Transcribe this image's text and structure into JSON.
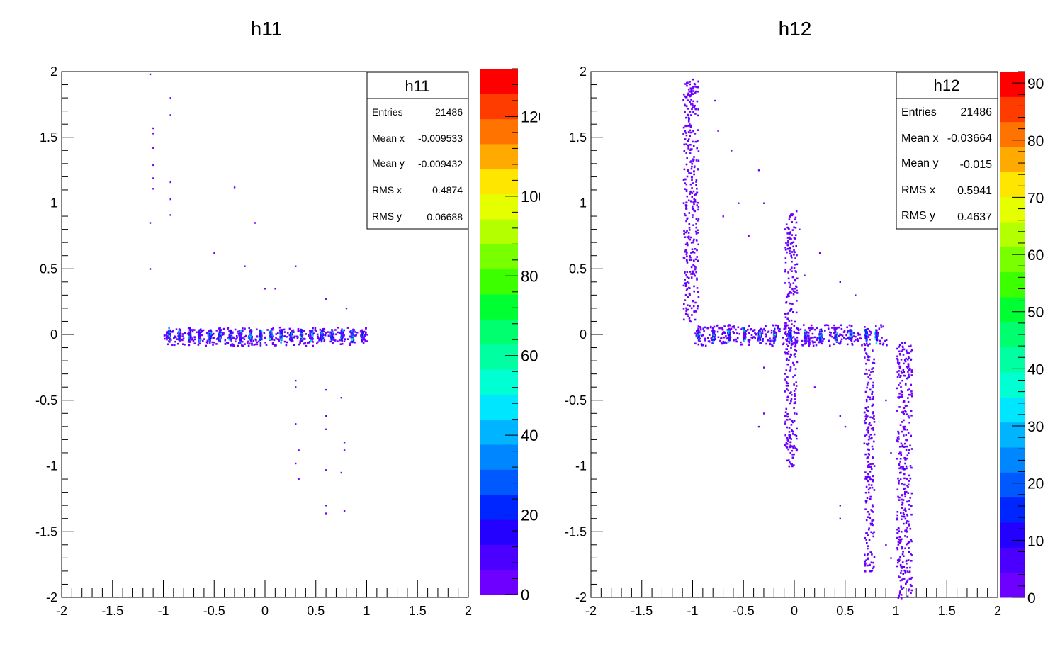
{
  "chart_data": [
    {
      "type": "heatmap",
      "title": "h11",
      "xlim": [
        -2,
        2
      ],
      "ylim": [
        -2,
        2
      ],
      "xticks": [
        "-2",
        "-1.5",
        "-1",
        "-0.5",
        "0",
        "0.5",
        "1",
        "1.5",
        "2"
      ],
      "yticks": [
        "2",
        "1.5",
        "1",
        "0.5",
        "0",
        "-0.5",
        "-1",
        "-1.5",
        "-2"
      ],
      "zlim": [
        0,
        132
      ],
      "zticks": [
        "0",
        "20",
        "40",
        "60",
        "80",
        "100",
        "120"
      ],
      "stats": {
        "name": "h11",
        "rows": [
          {
            "label": "Entries",
            "value": "21486"
          },
          {
            "label": "Mean x",
            "value": "-0.009533"
          },
          {
            "label": "Mean y",
            "value": "-0.009432"
          },
          {
            "label": "RMS x",
            "value": "0.4874"
          },
          {
            "label": "RMS y",
            "value": "0.06688"
          }
        ]
      },
      "shape": "horizontal band of 20 clusters at y≈0, x from -1 to 1, sparse outliers",
      "bands": [
        [
          -1.0,
          1.0,
          -0.08,
          0.06
        ]
      ],
      "clusters": {
        "x": [
          -0.95,
          -0.85,
          -0.75,
          -0.65,
          -0.55,
          -0.45,
          -0.35,
          -0.25,
          -0.15,
          -0.05,
          0.05,
          0.15,
          0.25,
          0.35,
          0.45,
          0.55,
          0.65,
          0.75,
          0.85,
          0.95
        ],
        "y": 0.0
      },
      "outliers": [
        [
          -1.13,
          1.98
        ],
        [
          -0.93,
          1.8
        ],
        [
          -0.93,
          1.67
        ],
        [
          -1.1,
          1.57
        ],
        [
          -1.1,
          1.53
        ],
        [
          -1.1,
          1.42
        ],
        [
          -1.1,
          1.29
        ],
        [
          -1.1,
          1.19
        ],
        [
          -1.1,
          1.11
        ],
        [
          -0.93,
          1.16
        ],
        [
          -0.93,
          1.03
        ],
        [
          -0.3,
          1.12
        ],
        [
          -0.93,
          0.91
        ],
        [
          -1.13,
          0.85
        ],
        [
          -0.1,
          0.85
        ],
        [
          -0.5,
          0.62
        ],
        [
          -1.13,
          0.5
        ],
        [
          -0.2,
          0.52
        ],
        [
          0.3,
          0.52
        ],
        [
          0.0,
          0.35
        ],
        [
          0.1,
          0.35
        ],
        [
          0.6,
          0.27
        ],
        [
          0.8,
          0.2
        ],
        [
          0.3,
          -0.35
        ],
        [
          0.3,
          -0.4
        ],
        [
          0.75,
          -0.48
        ],
        [
          0.6,
          -0.42
        ],
        [
          0.6,
          -0.62
        ],
        [
          0.3,
          -0.68
        ],
        [
          0.6,
          -0.72
        ],
        [
          0.78,
          -0.82
        ],
        [
          0.78,
          -0.88
        ],
        [
          0.33,
          -0.88
        ],
        [
          0.3,
          -0.98
        ],
        [
          0.6,
          -1.03
        ],
        [
          0.75,
          -1.05
        ],
        [
          0.33,
          -1.1
        ],
        [
          0.6,
          -1.3
        ],
        [
          0.6,
          -1.36
        ],
        [
          0.78,
          -1.34
        ]
      ]
    },
    {
      "type": "heatmap",
      "title": "h12",
      "xlim": [
        -2,
        2
      ],
      "ylim": [
        -2,
        2
      ],
      "xticks": [
        "-2",
        "-1.5",
        "-1",
        "-0.5",
        "0",
        "0.5",
        "1",
        "1.5",
        "2"
      ],
      "yticks": [
        "2",
        "1.5",
        "1",
        "0.5",
        "0",
        "-0.5",
        "-1",
        "-1.5",
        "-2"
      ],
      "zlim": [
        0,
        92
      ],
      "zticks": [
        "0",
        "10",
        "20",
        "30",
        "40",
        "50",
        "60",
        "70",
        "80",
        "90"
      ],
      "stats": {
        "name": "h12",
        "rows": [
          {
            "label": "Entries",
            "value": "21486"
          },
          {
            "label": "Mean x",
            "value": "-0.03664"
          },
          {
            "label": "Mean y",
            "value": "-0.015"
          },
          {
            "label": "RMS x",
            "value": "0.5941"
          },
          {
            "label": "RMS y",
            "value": "0.4637"
          }
        ]
      },
      "shape": "horizontal band at y≈0 from x≈-1.1 to 0.9, vertical stripes near x≈-1.05, -0.05, 0.75, 1.15",
      "bands": [
        [
          -1.0,
          0.9,
          -0.08,
          0.08
        ],
        [
          -1.1,
          -0.95,
          0.1,
          1.95
        ],
        [
          -0.1,
          0.02,
          -1.0,
          0.95
        ],
        [
          0.68,
          0.78,
          -1.8,
          -0.1
        ],
        [
          1.0,
          1.15,
          -2.0,
          -0.05
        ]
      ],
      "clusters": {
        "x": [
          -0.95,
          -0.8,
          -0.65,
          -0.5,
          -0.35,
          -0.2,
          -0.05,
          0.1,
          0.25,
          0.4,
          0.55,
          0.7,
          0.8
        ],
        "y": 0.0
      },
      "outliers": [
        [
          -0.78,
          1.78
        ],
        [
          -0.75,
          1.55
        ],
        [
          -0.62,
          1.4
        ],
        [
          -0.55,
          1.0
        ],
        [
          -0.35,
          1.25
        ],
        [
          -0.3,
          1.0
        ],
        [
          -0.7,
          0.9
        ],
        [
          -0.45,
          0.75
        ],
        [
          0.05,
          0.8
        ],
        [
          0.25,
          0.62
        ],
        [
          0.1,
          0.45
        ],
        [
          0.45,
          0.4
        ],
        [
          0.6,
          0.3
        ],
        [
          -0.3,
          -0.25
        ],
        [
          -0.3,
          -0.6
        ],
        [
          -0.35,
          -0.7
        ],
        [
          0.2,
          -0.4
        ],
        [
          0.45,
          -0.62
        ],
        [
          0.5,
          -0.7
        ],
        [
          0.9,
          -0.5
        ],
        [
          0.45,
          -1.3
        ],
        [
          0.45,
          -1.4
        ],
        [
          0.95,
          -0.9
        ],
        [
          0.9,
          -1.6
        ],
        [
          0.95,
          -1.7
        ]
      ]
    }
  ]
}
